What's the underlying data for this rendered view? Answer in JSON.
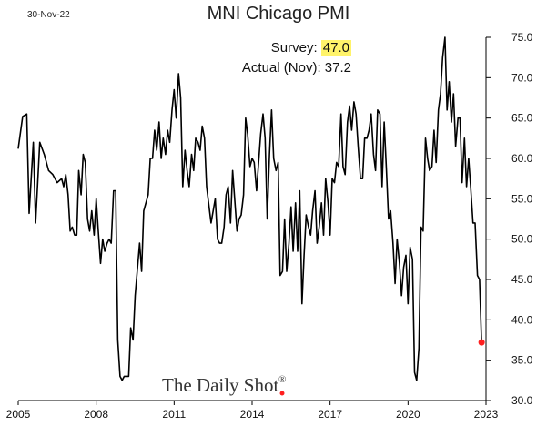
{
  "date_label": "30-Nov-22",
  "survey": {
    "survey_label": "Survey:",
    "survey_value": "47.0",
    "actual_label": "Actual (Nov):",
    "actual_value": "37.2",
    "highlight_color": "#fff36a"
  },
  "watermark": {
    "text": "The Daily Shot",
    "mark": "®"
  },
  "colors": {
    "line": "#000000",
    "last_point": "#ff1f1f",
    "watermark_dot": "#ff1f1f"
  },
  "chart_data": {
    "type": "line",
    "title": "MNI Chicago PMI",
    "xlabel": "",
    "ylabel": "",
    "xlim": [
      2005,
      2023
    ],
    "ylim": [
      30,
      75
    ],
    "x_ticks": [
      2005,
      2008,
      2011,
      2014,
      2017,
      2020,
      2023
    ],
    "x_tick_labels": [
      "2005",
      "2008",
      "2011",
      "2014",
      "2017",
      "2020",
      "2023"
    ],
    "y_ticks": [
      30,
      35,
      40,
      45,
      50,
      55,
      60,
      65,
      70,
      75
    ],
    "y_tick_labels": [
      "30.0",
      "35.0",
      "40.0",
      "45.0",
      "50.0",
      "55.0",
      "60.0",
      "65.0",
      "70.0",
      "75.0"
    ],
    "y_axis_position": "right",
    "grid": false,
    "legend": "none",
    "series": [
      {
        "points": [
          [
            2005.0,
            61.2
          ],
          [
            2005.17,
            65.2
          ],
          [
            2005.33,
            65.5
          ],
          [
            2005.42,
            53.2
          ],
          [
            2005.58,
            62.0
          ],
          [
            2005.67,
            52.0
          ],
          [
            2005.83,
            62.0
          ],
          [
            2006.0,
            60.5
          ],
          [
            2006.17,
            58.5
          ],
          [
            2006.33,
            58.0
          ],
          [
            2006.5,
            57.0
          ],
          [
            2006.67,
            57.5
          ],
          [
            2006.75,
            56.5
          ],
          [
            2006.83,
            58.0
          ],
          [
            2006.92,
            55.5
          ],
          [
            2007.0,
            51.0
          ],
          [
            2007.08,
            51.5
          ],
          [
            2007.17,
            50.5
          ],
          [
            2007.25,
            50.5
          ],
          [
            2007.33,
            58.5
          ],
          [
            2007.42,
            55.5
          ],
          [
            2007.5,
            60.5
          ],
          [
            2007.58,
            59.5
          ],
          [
            2007.67,
            52.5
          ],
          [
            2007.75,
            51.0
          ],
          [
            2007.83,
            53.5
          ],
          [
            2007.92,
            50.5
          ],
          [
            2008.0,
            55.0
          ],
          [
            2008.08,
            51.0
          ],
          [
            2008.17,
            47.0
          ],
          [
            2008.25,
            50.0
          ],
          [
            2008.33,
            48.5
          ],
          [
            2008.42,
            49.5
          ],
          [
            2008.5,
            50.0
          ],
          [
            2008.58,
            49.5
          ],
          [
            2008.67,
            56.0
          ],
          [
            2008.75,
            56.0
          ],
          [
            2008.83,
            37.5
          ],
          [
            2008.92,
            33.0
          ],
          [
            2009.0,
            32.5
          ],
          [
            2009.08,
            33.0
          ],
          [
            2009.17,
            33.0
          ],
          [
            2009.25,
            33.0
          ],
          [
            2009.33,
            39.0
          ],
          [
            2009.42,
            37.5
          ],
          [
            2009.5,
            43.0
          ],
          [
            2009.67,
            49.5
          ],
          [
            2009.75,
            46.0
          ],
          [
            2009.83,
            53.5
          ],
          [
            2010.0,
            55.5
          ],
          [
            2010.08,
            60.0
          ],
          [
            2010.17,
            60.0
          ],
          [
            2010.25,
            63.5
          ],
          [
            2010.33,
            61.0
          ],
          [
            2010.42,
            64.5
          ],
          [
            2010.5,
            60.0
          ],
          [
            2010.58,
            62.5
          ],
          [
            2010.67,
            60.5
          ],
          [
            2010.75,
            63.5
          ],
          [
            2010.83,
            62.0
          ],
          [
            2010.92,
            66.0
          ],
          [
            2011.0,
            68.5
          ],
          [
            2011.08,
            65.0
          ],
          [
            2011.17,
            70.5
          ],
          [
            2011.25,
            67.5
          ],
          [
            2011.33,
            56.5
          ],
          [
            2011.42,
            61.0
          ],
          [
            2011.5,
            58.5
          ],
          [
            2011.58,
            56.5
          ],
          [
            2011.67,
            60.5
          ],
          [
            2011.75,
            58.5
          ],
          [
            2011.83,
            62.5
          ],
          [
            2011.92,
            62.0
          ],
          [
            2012.0,
            61.0
          ],
          [
            2012.08,
            64.0
          ],
          [
            2012.17,
            62.5
          ],
          [
            2012.25,
            56.5
          ],
          [
            2012.42,
            52.0
          ],
          [
            2012.5,
            53.5
          ],
          [
            2012.58,
            55.0
          ],
          [
            2012.67,
            50.0
          ],
          [
            2012.75,
            49.5
          ],
          [
            2012.83,
            49.5
          ],
          [
            2012.92,
            51.5
          ],
          [
            2013.0,
            55.5
          ],
          [
            2013.08,
            56.5
          ],
          [
            2013.17,
            52.0
          ],
          [
            2013.25,
            58.5
          ],
          [
            2013.42,
            51.0
          ],
          [
            2013.5,
            52.5
          ],
          [
            2013.58,
            53.0
          ],
          [
            2013.67,
            55.5
          ],
          [
            2013.75,
            65.0
          ],
          [
            2013.83,
            63.0
          ],
          [
            2013.92,
            59.0
          ],
          [
            2014.0,
            60.0
          ],
          [
            2014.08,
            59.5
          ],
          [
            2014.17,
            56.0
          ],
          [
            2014.33,
            63.0
          ],
          [
            2014.42,
            65.5
          ],
          [
            2014.5,
            62.5
          ],
          [
            2014.58,
            52.5
          ],
          [
            2014.67,
            60.5
          ],
          [
            2014.75,
            66.0
          ],
          [
            2014.83,
            60.0
          ],
          [
            2014.92,
            58.5
          ],
          [
            2015.0,
            59.5
          ],
          [
            2015.08,
            45.5
          ],
          [
            2015.17,
            46.0
          ],
          [
            2015.25,
            52.5
          ],
          [
            2015.33,
            46.0
          ],
          [
            2015.42,
            49.5
          ],
          [
            2015.5,
            54.0
          ],
          [
            2015.58,
            48.5
          ],
          [
            2015.67,
            54.5
          ],
          [
            2015.75,
            48.5
          ],
          [
            2015.83,
            56.0
          ],
          [
            2015.92,
            42.0
          ],
          [
            2016.0,
            48.0
          ],
          [
            2016.08,
            53.0
          ],
          [
            2016.17,
            51.5
          ],
          [
            2016.25,
            50.5
          ],
          [
            2016.33,
            53.5
          ],
          [
            2016.42,
            56.0
          ],
          [
            2016.5,
            49.5
          ],
          [
            2016.58,
            51.5
          ],
          [
            2016.67,
            54.5
          ],
          [
            2016.75,
            50.5
          ],
          [
            2016.83,
            57.5
          ],
          [
            2016.92,
            54.5
          ],
          [
            2017.0,
            50.5
          ],
          [
            2017.08,
            57.5
          ],
          [
            2017.17,
            57.0
          ],
          [
            2017.25,
            59.5
          ],
          [
            2017.33,
            59.0
          ],
          [
            2017.42,
            65.5
          ],
          [
            2017.5,
            59.0
          ],
          [
            2017.58,
            58.0
          ],
          [
            2017.67,
            64.5
          ],
          [
            2017.75,
            66.5
          ],
          [
            2017.83,
            63.5
          ],
          [
            2017.92,
            67.0
          ],
          [
            2018.0,
            65.5
          ],
          [
            2018.08,
            61.5
          ],
          [
            2018.17,
            57.5
          ],
          [
            2018.25,
            57.5
          ],
          [
            2018.33,
            62.5
          ],
          [
            2018.42,
            62.5
          ],
          [
            2018.5,
            63.5
          ],
          [
            2018.58,
            65.5
          ],
          [
            2018.67,
            60.5
          ],
          [
            2018.75,
            58.5
          ],
          [
            2018.83,
            66.0
          ],
          [
            2018.92,
            65.5
          ],
          [
            2019.0,
            56.5
          ],
          [
            2019.08,
            64.5
          ],
          [
            2019.17,
            58.5
          ],
          [
            2019.25,
            52.5
          ],
          [
            2019.33,
            53.5
          ],
          [
            2019.42,
            49.5
          ],
          [
            2019.5,
            44.5
          ],
          [
            2019.58,
            50.0
          ],
          [
            2019.67,
            47.0
          ],
          [
            2019.75,
            43.0
          ],
          [
            2019.83,
            46.5
          ],
          [
            2019.92,
            48.0
          ],
          [
            2020.0,
            42.0
          ],
          [
            2020.08,
            49.0
          ],
          [
            2020.17,
            47.5
          ],
          [
            2020.25,
            33.5
          ],
          [
            2020.33,
            32.5
          ],
          [
            2020.42,
            36.5
          ],
          [
            2020.5,
            51.5
          ],
          [
            2020.58,
            51.0
          ],
          [
            2020.67,
            62.5
          ],
          [
            2020.75,
            60.0
          ],
          [
            2020.83,
            58.5
          ],
          [
            2020.92,
            59.0
          ],
          [
            2021.0,
            63.5
          ],
          [
            2021.08,
            59.5
          ],
          [
            2021.17,
            66.0
          ],
          [
            2021.25,
            68.0
          ],
          [
            2021.33,
            72.5
          ],
          [
            2021.42,
            75.0
          ],
          [
            2021.5,
            66.0
          ],
          [
            2021.58,
            69.5
          ],
          [
            2021.67,
            64.5
          ],
          [
            2021.75,
            68.0
          ],
          [
            2021.83,
            61.5
          ],
          [
            2021.92,
            65.0
          ],
          [
            2022.0,
            65.0
          ],
          [
            2022.08,
            57.0
          ],
          [
            2022.17,
            62.5
          ],
          [
            2022.25,
            56.5
          ],
          [
            2022.33,
            60.0
          ],
          [
            2022.42,
            56.0
          ],
          [
            2022.5,
            52.0
          ],
          [
            2022.58,
            52.0
          ],
          [
            2022.67,
            45.5
          ],
          [
            2022.75,
            45.0
          ],
          [
            2022.83,
            37.2
          ]
        ]
      }
    ],
    "last_point_highlight": [
      2022.83,
      37.2
    ]
  }
}
